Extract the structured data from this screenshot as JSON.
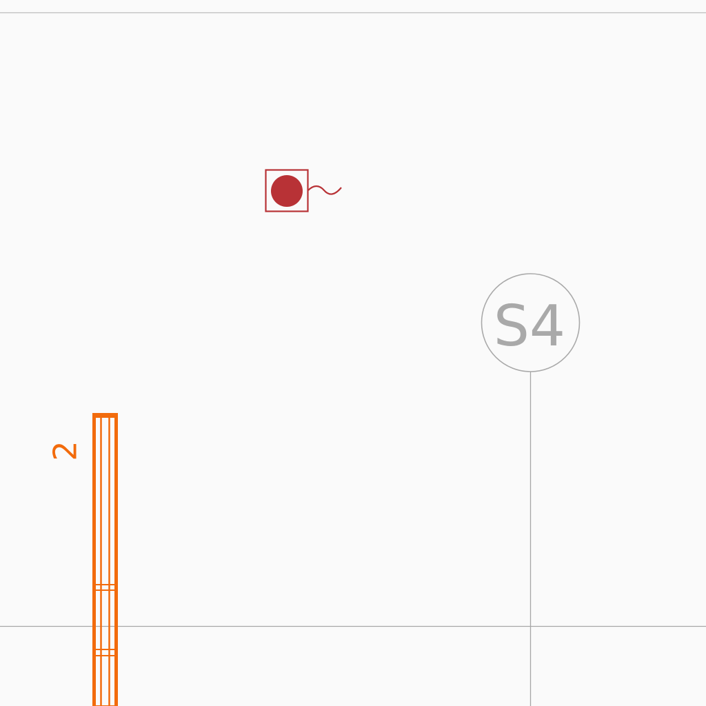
{
  "colors": {
    "background": "#fafafa",
    "grid_line": "#a6a6a6",
    "grid_bubble_text": "#a9a9a9",
    "wall": "#f26b0c",
    "device": "#b83236"
  },
  "plan": {
    "grid_bubble": {
      "label": "S4"
    },
    "wall_tag": {
      "label": "2"
    },
    "device": {
      "icon": "wireless-beacon-icon"
    }
  }
}
